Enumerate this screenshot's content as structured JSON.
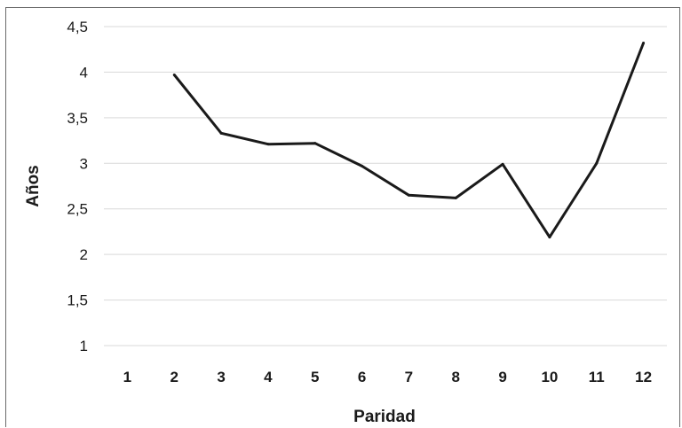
{
  "chart_data": {
    "type": "line",
    "title": "",
    "xlabel": "Paridad",
    "ylabel": "Años",
    "categories": [
      "1",
      "2",
      "3",
      "4",
      "5",
      "6",
      "7",
      "8",
      "9",
      "10",
      "11",
      "12"
    ],
    "ylim": [
      1,
      4.5
    ],
    "yticks": [
      1,
      1.5,
      2,
      2.5,
      3,
      3.5,
      4,
      4.5
    ],
    "ytick_labels": [
      "1",
      "1,5",
      "2",
      "2,5",
      "3",
      "3,5",
      "4",
      "4,5"
    ],
    "grid": true,
    "series": [
      {
        "values": [
          null,
          3.97,
          3.33,
          3.21,
          3.22,
          2.97,
          2.65,
          2.62,
          2.99,
          2.19,
          3.0,
          4.32
        ],
        "color": "#1a1a1a"
      }
    ]
  }
}
